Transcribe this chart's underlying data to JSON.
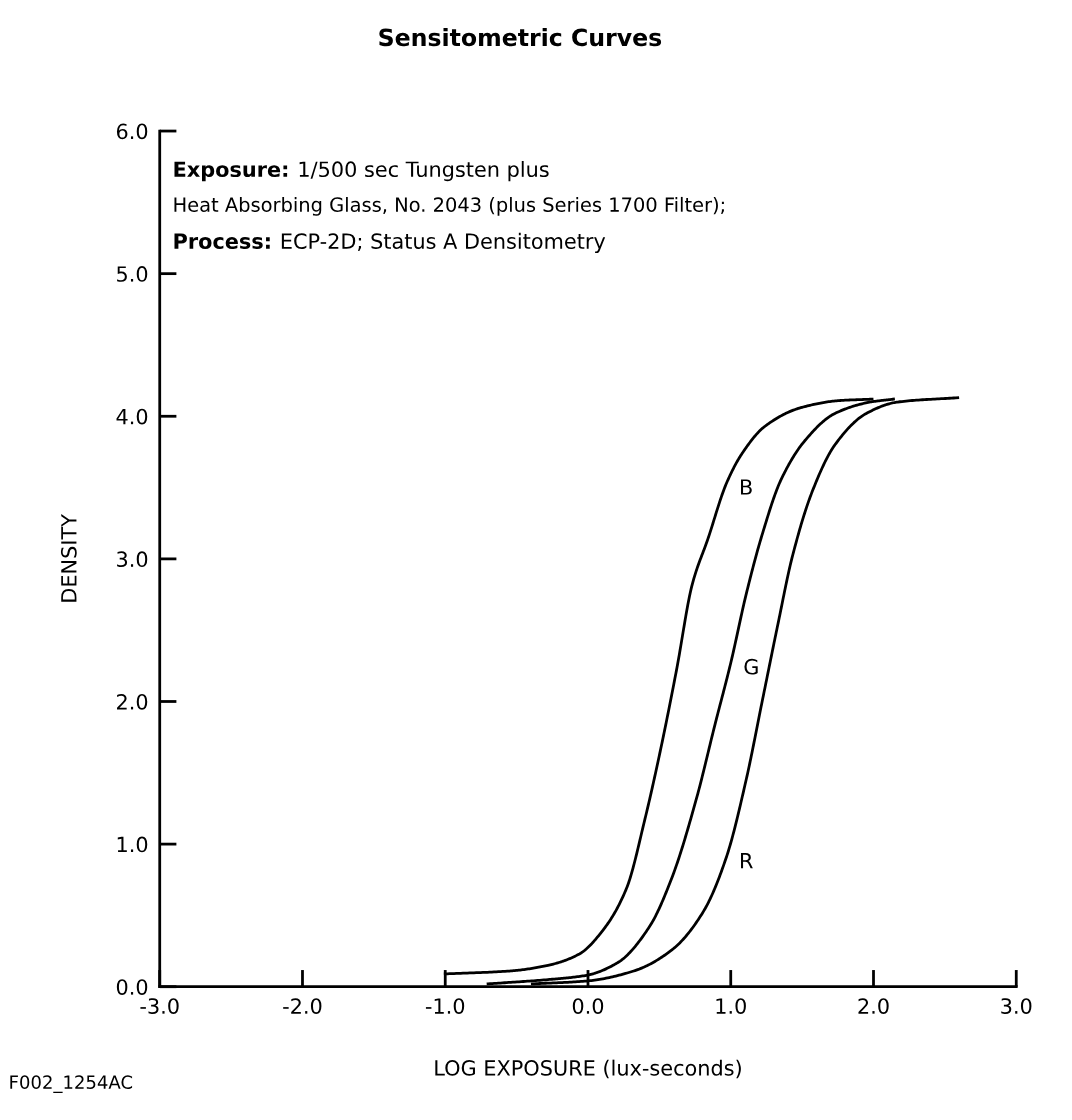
{
  "chart_data": {
    "type": "line",
    "title": "Sensitometric Curves",
    "xlabel": "LOG EXPOSURE (lux-seconds)",
    "ylabel": "DENSITY",
    "xlim": [
      -3.0,
      3.0
    ],
    "ylim": [
      0.0,
      6.0
    ],
    "xticks": [
      {
        "value": -3,
        "label": "-3.0"
      },
      {
        "value": -2,
        "label": "-2.0"
      },
      {
        "value": -1,
        "label": "-1.0"
      },
      {
        "value": 0,
        "label": "0.0"
      },
      {
        "value": 1,
        "label": "1.0"
      },
      {
        "value": 2,
        "label": "2.0"
      },
      {
        "value": 3,
        "label": "3.0"
      }
    ],
    "yticks": [
      {
        "value": 0,
        "label": "0.0"
      },
      {
        "value": 1,
        "label": "1.0"
      },
      {
        "value": 2,
        "label": "2.0"
      },
      {
        "value": 3,
        "label": "3.0"
      },
      {
        "value": 4,
        "label": "4.0"
      },
      {
        "value": 5,
        "label": "5.0"
      },
      {
        "value": 6,
        "label": "6.0"
      }
    ],
    "grid": false,
    "legend": false,
    "marker": "none",
    "line_style": "solid",
    "series": [
      {
        "name": "B",
        "color": "#000000",
        "x": [
          -1.0,
          -0.55,
          -0.28,
          -0.06,
          0.1,
          0.27,
          0.4,
          0.51,
          0.62,
          0.73,
          0.84,
          0.97,
          1.08,
          1.24,
          1.49,
          1.76,
          1.99
        ],
        "values": [
          0.09,
          0.11,
          0.15,
          0.23,
          0.39,
          0.69,
          1.18,
          1.67,
          2.22,
          2.82,
          3.14,
          3.53,
          3.74,
          3.93,
          4.06,
          4.11,
          4.12
        ]
      },
      {
        "name": "G",
        "color": "#000000",
        "x": [
          -0.7,
          -0.28,
          -0.01,
          0.21,
          0.43,
          0.59,
          0.76,
          0.89,
          1.0,
          1.11,
          1.22,
          1.35,
          1.52,
          1.73,
          1.98,
          2.14
        ],
        "values": [
          0.02,
          0.05,
          0.08,
          0.17,
          0.42,
          0.77,
          1.32,
          1.84,
          2.27,
          2.76,
          3.17,
          3.55,
          3.83,
          4.02,
          4.1,
          4.12
        ]
      },
      {
        "name": "R",
        "color": "#000000",
        "x": [
          -0.39,
          -0.01,
          0.32,
          0.59,
          0.81,
          0.97,
          1.11,
          1.22,
          1.33,
          1.43,
          1.57,
          1.73,
          1.95,
          2.17,
          2.59
        ],
        "values": [
          0.02,
          0.04,
          0.11,
          0.26,
          0.53,
          0.91,
          1.46,
          2.0,
          2.54,
          3.01,
          3.47,
          3.8,
          4.02,
          4.1,
          4.13
        ]
      }
    ],
    "annotations": [
      "Exposure: 1/500 sec Tungsten plus",
      "Heat Absorbing Glass, No. 2043 (plus Series 1700 Filter);",
      "Process: ECP-2D; Status A Densitometry",
      "F002_1254AC"
    ]
  }
}
